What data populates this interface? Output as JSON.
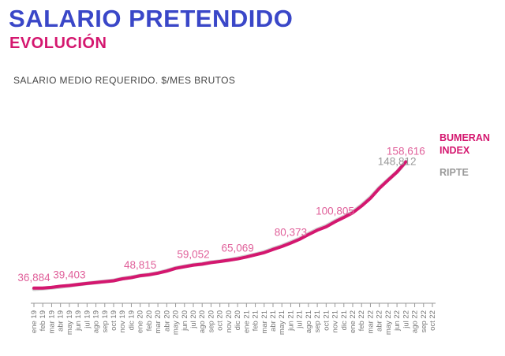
{
  "header": {
    "title": "SALARIO PRETENDIDO",
    "subtitle": "EVOLUCIÓN",
    "note": "SALARIO MEDIO REQUERIDO. $/MES BRUTOS"
  },
  "colors": {
    "title": "#3a47c8",
    "accent": "#d4176f",
    "ripte": "#cfcfcf",
    "axis": "#999999",
    "label": "#e0609a",
    "grey_label": "#999999"
  },
  "chart_data": {
    "type": "line",
    "x": [
      "ene 19",
      "feb 19",
      "mar 19",
      "abr 19",
      "may 19",
      "jun 19",
      "jul 19",
      "ago 19",
      "sep 19",
      "oct 19",
      "nov 19",
      "dic 19",
      "ene 20",
      "feb 20",
      "mar 20",
      "abr 20",
      "may 20",
      "jun 20",
      "jul 20",
      "ago 20",
      "sep 20",
      "oct 20",
      "nov 20",
      "dic 20",
      "ene 21",
      "feb 21",
      "mar 21",
      "abr 21",
      "may 21",
      "jun 21",
      "jul 21",
      "ago 21",
      "sep 21",
      "oct 21",
      "nov 21",
      "dic 21",
      "ene 22",
      "feb 22",
      "mar 22",
      "abr 22",
      "may 22",
      "jun 22",
      "jul 22",
      "ago 22",
      "sep 22",
      "oct 22"
    ],
    "series": [
      {
        "name": "BUMERAN INDEX",
        "color": "#d4176f",
        "values": [
          36884,
          37000,
          37600,
          38700,
          39403,
          40500,
          41400,
          42300,
          43100,
          44000,
          45900,
          47000,
          48815,
          49800,
          51300,
          53300,
          56000,
          57600,
          59052,
          60000,
          61500,
          62600,
          63800,
          65069,
          66900,
          69000,
          71100,
          74200,
          77000,
          80373,
          84000,
          88500,
          92700,
          96000,
          100805,
          105000,
          109500,
          116000,
          123500,
          133000,
          141000,
          148812,
          158616,
          null,
          null,
          null
        ]
      },
      {
        "name": "RIPTE",
        "color": "#cfcfcf",
        "values": [
          36000,
          36500,
          37300,
          38200,
          39300,
          40400,
          41500,
          42400,
          43300,
          44300,
          46100,
          47400,
          49000,
          50000,
          51600,
          53700,
          56300,
          57900,
          59400,
          60200,
          61800,
          62800,
          64000,
          65600,
          67400,
          69400,
          71600,
          74800,
          77600,
          81000,
          84600,
          89200,
          93400,
          96800,
          101500,
          105800,
          110200,
          116800,
          124200,
          133600,
          141400,
          148812,
          158616,
          null,
          null,
          null
        ]
      }
    ],
    "data_labels": [
      {
        "index": 0,
        "text": "36,884",
        "color": "label"
      },
      {
        "index": 4,
        "text": "39,403",
        "color": "label"
      },
      {
        "index": 12,
        "text": "48,815",
        "color": "label"
      },
      {
        "index": 18,
        "text": "59,052",
        "color": "label"
      },
      {
        "index": 23,
        "text": "65,069",
        "color": "label"
      },
      {
        "index": 29,
        "text": "80,373",
        "color": "label"
      },
      {
        "index": 34,
        "text": "100,805",
        "color": "label"
      },
      {
        "index": 41,
        "text": "148,812",
        "color": "grey_label"
      },
      {
        "index": 42,
        "text": "158,616",
        "color": "label"
      }
    ],
    "legend": [
      {
        "text": "BUMERAN",
        "color": "accent"
      },
      {
        "text": "INDEX",
        "color": "accent"
      },
      {
        "text": "RIPTE",
        "color": "grey_label"
      }
    ],
    "ylim": [
      0,
      170000
    ],
    "grid": false,
    "legend_placement": "right"
  }
}
